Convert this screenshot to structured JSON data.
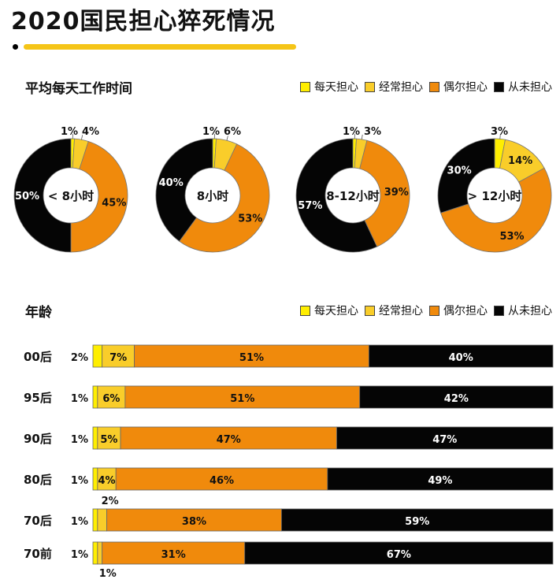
{
  "title": "2020国民担心猝死情况",
  "colors": {
    "daily": "#ffee00",
    "often": "#f9cd2a",
    "occasional": "#f08a0c",
    "never": "#050505"
  },
  "work_section": {
    "heading": "平均每天工作时间",
    "legend": [
      "每天担心",
      "经常担心",
      "偶尔担心",
      "从未担心"
    ]
  },
  "age_section": {
    "heading": "年龄",
    "legend": [
      "每天担心",
      "经常担心",
      "偶尔担心",
      "从未担心"
    ]
  },
  "chart_data": [
    {
      "type": "pie",
      "variant": "donut",
      "title": "平均每天工作时间",
      "legend": [
        "每天担心",
        "经常担心",
        "偶尔担心",
        "从未担心"
      ],
      "donuts": [
        {
          "center_label": "< 8小时",
          "values": [
            1,
            4,
            45,
            50
          ],
          "labels": [
            "1%",
            "4%",
            "45%",
            "50%"
          ]
        },
        {
          "center_label": "8小时",
          "values": [
            1,
            6,
            53,
            40
          ],
          "labels": [
            "1%",
            "6%",
            "53%",
            "40%"
          ]
        },
        {
          "center_label": "8-12小时",
          "values": [
            1,
            3,
            39,
            57
          ],
          "labels": [
            "1%",
            "3%",
            "39%",
            "57%"
          ]
        },
        {
          "center_label": "> 12小时",
          "values": [
            3,
            14,
            53,
            30
          ],
          "labels": [
            "3%",
            "14%",
            "53%",
            "30%"
          ]
        }
      ]
    },
    {
      "type": "bar",
      "orientation": "horizontal",
      "stacked": true,
      "title": "年龄",
      "categories": [
        "00后",
        "95后",
        "90后",
        "80后",
        "70后",
        "70前"
      ],
      "series": [
        {
          "name": "每天担心",
          "values": [
            2,
            1,
            1,
            1,
            1,
            1
          ],
          "labels": [
            "2%",
            "1%",
            "1%",
            "1%",
            "1%",
            "1%"
          ]
        },
        {
          "name": "经常担心",
          "values": [
            7,
            6,
            5,
            4,
            2,
            1
          ],
          "labels": [
            "7%",
            "6%",
            "5%",
            "4%",
            "2%",
            "1%"
          ]
        },
        {
          "name": "偶尔担心",
          "values": [
            51,
            51,
            47,
            46,
            38,
            31
          ],
          "labels": [
            "51%",
            "51%",
            "47%",
            "46%",
            "38%",
            "31%"
          ]
        },
        {
          "name": "从未担心",
          "values": [
            40,
            42,
            47,
            49,
            59,
            67
          ],
          "labels": [
            "40%",
            "42%",
            "47%",
            "49%",
            "59%",
            "67%"
          ]
        }
      ],
      "xlim": [
        0,
        100
      ]
    }
  ]
}
